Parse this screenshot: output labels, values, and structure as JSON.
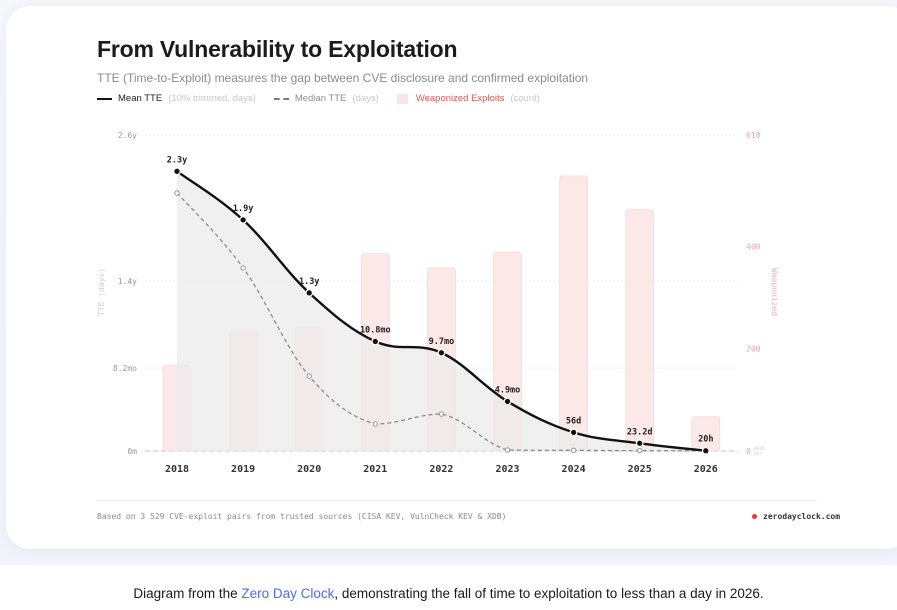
{
  "header": {
    "title": "From Vulnerability to Exploitation",
    "subtitle": "TTE (Time-to-Exploit) measures the gap between CVE disclosure and confirmed exploitation"
  },
  "legend": [
    {
      "name": "Mean TTE",
      "note": "(10% trimmed, days)",
      "style": "solid"
    },
    {
      "name": "Median TTE",
      "note": "(days)",
      "style": "dashed"
    },
    {
      "name": "Weaponized Exploits",
      "note": "(count)",
      "style": "bar"
    }
  ],
  "colors": {
    "mean_line": "#111111",
    "median_line": "#8a8a8a",
    "bar_fill": "#fde6e6",
    "bar_stroke": "#f9d4d4",
    "area_fill": "#ebebeb",
    "accent_red": "#e53935",
    "link": "#4a6cf7"
  },
  "chart_data": {
    "type": "bar+line",
    "title": "From Vulnerability to Exploitation",
    "categories": [
      "2018",
      "2019",
      "2020",
      "2021",
      "2022",
      "2023",
      "2024",
      "2025",
      "2026"
    ],
    "y_left": {
      "label": "TTE (days)",
      "range_days": [
        0,
        949
      ],
      "ticks": [
        {
          "label": "2.6y",
          "value_days": 949
        },
        {
          "label": "1.4y",
          "value_days": 511
        },
        {
          "label": "8.2mo",
          "value_days": 249
        },
        {
          "label": "0m",
          "value_days": 0
        }
      ]
    },
    "y_right": {
      "label": "Weaponized",
      "range": [
        0,
        618
      ],
      "ticks": [
        {
          "label": "618",
          "value": 618
        },
        {
          "label": "400",
          "value": 400
        },
        {
          "label": "200",
          "value": 200
        },
        {
          "label": "0",
          "value": 0
        }
      ],
      "reference_labels": [
        "WEEK",
        "DAY"
      ]
    },
    "series": [
      {
        "name": "Mean TTE",
        "axis": "left",
        "kind": "line",
        "values_days": [
          840,
          694,
          475,
          329,
          295,
          149,
          56,
          23.2,
          0.83
        ],
        "labels": [
          "2.3y",
          "1.9y",
          "1.3y",
          "10.8mo",
          "9.7mo",
          "4.9mo",
          "56d",
          "23.2d",
          "20h"
        ]
      },
      {
        "name": "Median TTE",
        "axis": "left",
        "kind": "dashed-line",
        "values_days": [
          775,
          550,
          225,
          81,
          111,
          3,
          2,
          1,
          0.5
        ]
      },
      {
        "name": "Weaponized Exploits",
        "axis": "right",
        "kind": "bar",
        "values": [
          168,
          235,
          241,
          386,
          358,
          389,
          538,
          472,
          67
        ]
      }
    ],
    "grid": true
  },
  "footer": {
    "note": "Based on 3 529 CVE-exploit pairs from trusted sources (CISA KEV, VulnCheck KEV & XDB)",
    "site": "zerodayclock.com"
  },
  "caption": {
    "before": "Diagram from the ",
    "link": "Zero Day Clock",
    "after": ", demonstrating the fall of time to exploitation to less than a day in 2026."
  }
}
